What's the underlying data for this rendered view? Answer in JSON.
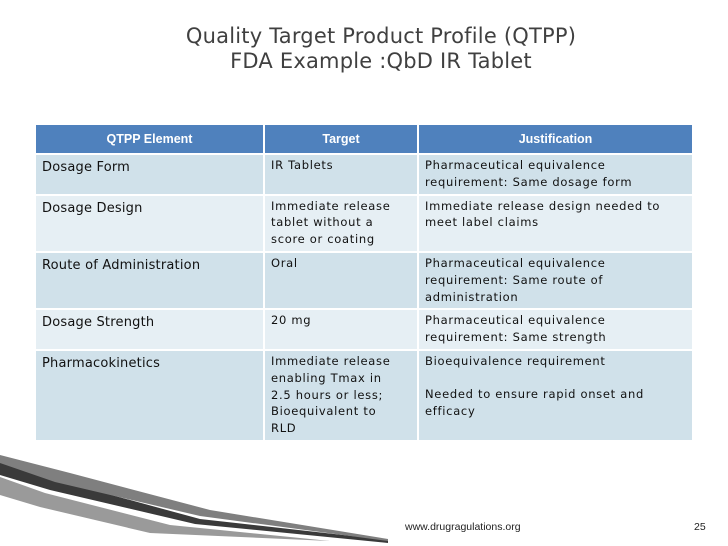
{
  "slide": {
    "title_line1": "Quality Target Product Profile (QTPP)",
    "title_line2": "FDA Example :QbD IR Tablet"
  },
  "table": {
    "headers": [
      "QTPP Element",
      "Target",
      "Justification"
    ],
    "rows": [
      {
        "element": "Dosage Form",
        "target": [
          "IR Tablets"
        ],
        "justification": [
          "Pharmaceutical equivalence",
          "requirement: Same dosage form"
        ]
      },
      {
        "element": "Dosage Design",
        "target": [
          "Immediate release",
          "tablet without a",
          "score or coating"
        ],
        "justification": [
          "Immediate release design needed to",
          "meet label claims"
        ]
      },
      {
        "element": "Route of Administration",
        "target": [
          "Oral"
        ],
        "justification": [
          "Pharmaceutical equivalence",
          "requirement: Same route of",
          "administration"
        ]
      },
      {
        "element": "Dosage Strength",
        "target": [
          "20 mg"
        ],
        "justification": [
          "Pharmaceutical equivalence",
          "requirement: Same strength"
        ]
      },
      {
        "element": "Pharmacokinetics",
        "target": [
          "Immediate release",
          "enabling Tmax in",
          "2.5 hours or less;",
          "Bioequivalent to",
          "RLD"
        ],
        "justification": [
          "Bioequivalence requirement",
          "",
          "Needed to ensure rapid onset and",
          "efficacy"
        ]
      }
    ]
  },
  "footer": {
    "url": "www.drugragulations.org",
    "page": "25"
  },
  "colors": {
    "header_bg": "#4f81bd",
    "row_dark": "#d0e1ea",
    "row_light": "#e6eff4",
    "title": "#404040"
  }
}
